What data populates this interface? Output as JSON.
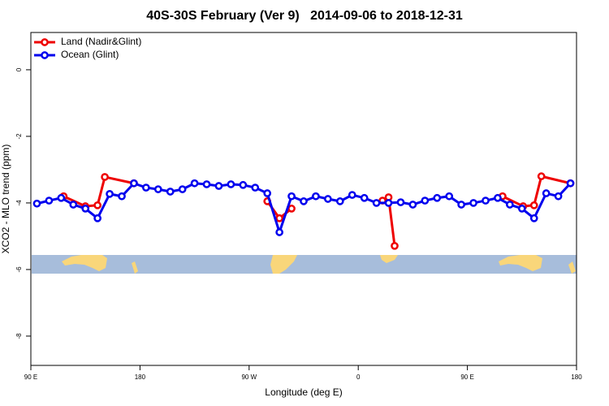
{
  "chart_data": {
    "type": "line",
    "title": "40S-30S February (Ver 9)   2014-09-06 to 2018-12-31",
    "x_label": "Longitude (deg E)",
    "y_label": "XCO2 - MLO trend (ppm)",
    "xlim": [
      90,
      540
    ],
    "ylim": [
      -8.88,
      1.12
    ],
    "xticks": [
      {
        "value": 90,
        "label": "90 E"
      },
      180,
      {
        "value": 270,
        "label": "90 W"
      },
      {
        "value": 360,
        "label": "0"
      },
      {
        "value": 450,
        "label": "90 E"
      },
      {
        "value": 540,
        "label": "180"
      }
    ],
    "yticks": [
      0,
      -2,
      -4,
      -6,
      -8
    ],
    "legend": "top-left",
    "series": [
      {
        "name": "Land (Nadir&Glint)",
        "color": "#ee0000",
        "x": [
          117,
          135,
          145,
          151,
          175,
          null,
          285,
          295,
          305,
          null,
          380,
          385,
          390,
          null,
          479,
          496,
          505,
          511,
          535
        ],
        "values": [
          -3.8,
          -4.1,
          -4.07,
          -3.22,
          -3.41,
          null,
          -3.95,
          -4.46,
          -4.17,
          null,
          -3.93,
          -3.83,
          -5.29,
          null,
          -3.8,
          -4.1,
          -4.07,
          -3.2,
          -3.41
        ]
      },
      {
        "name": "Ocean (Glint)",
        "color": "#0000ee",
        "x": [
          95,
          105,
          115,
          125,
          135,
          145,
          155,
          165,
          175,
          185,
          195,
          205,
          215,
          225,
          235,
          245,
          255,
          265,
          275,
          285,
          295,
          305,
          315,
          325,
          335,
          345,
          355,
          365,
          375,
          385,
          395,
          405,
          415,
          425,
          435,
          445,
          455,
          465,
          475,
          485,
          495,
          505,
          515,
          525,
          535
        ],
        "values": [
          -4.02,
          -3.93,
          -3.85,
          -4.05,
          -4.17,
          -4.46,
          -3.73,
          -3.8,
          -3.41,
          -3.54,
          -3.59,
          -3.66,
          -3.59,
          -3.41,
          -3.44,
          -3.49,
          -3.44,
          -3.46,
          -3.54,
          -3.71,
          -4.88,
          -3.8,
          -3.95,
          -3.8,
          -3.88,
          -3.95,
          -3.76,
          -3.85,
          -4.0,
          -4.0,
          -3.98,
          -4.05,
          -3.93,
          -3.85,
          -3.8,
          -4.05,
          -4.0,
          -3.93,
          -3.85,
          -4.05,
          -4.17,
          -4.46,
          -3.71,
          -3.8,
          -3.41
        ]
      }
    ]
  }
}
